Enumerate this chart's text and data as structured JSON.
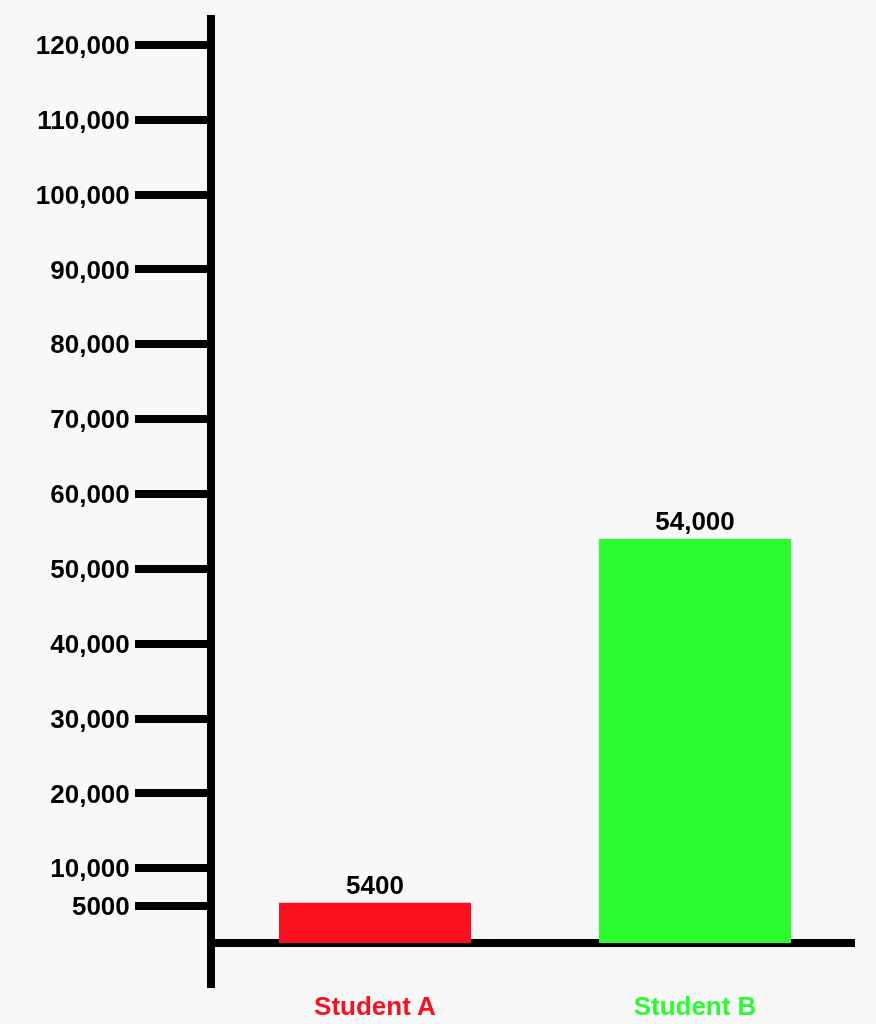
{
  "chart_data": {
    "type": "bar",
    "categories": [
      "Student A",
      "Student B"
    ],
    "values": [
      5400,
      54000
    ],
    "colors": [
      "#fc0f1f",
      "#2afc2f"
    ],
    "value_labels": [
      "5400",
      "54,000"
    ],
    "ylim": [
      -6000,
      124000
    ],
    "yticks": [
      {
        "value": 5000,
        "label": "5000"
      },
      {
        "value": 10000,
        "label": "10,000"
      },
      {
        "value": 20000,
        "label": "20,000"
      },
      {
        "value": 30000,
        "label": "30,000"
      },
      {
        "value": 40000,
        "label": "40,000"
      },
      {
        "value": 50000,
        "label": "50,000"
      },
      {
        "value": 60000,
        "label": "60,000"
      },
      {
        "value": 70000,
        "label": "70,000"
      },
      {
        "value": 80000,
        "label": "80,000"
      },
      {
        "value": 90000,
        "label": "90,000"
      },
      {
        "value": 100000,
        "label": "100,000"
      },
      {
        "value": 110000,
        "label": "110,000"
      },
      {
        "value": 120000,
        "label": "120,000"
      }
    ],
    "grid": false
  }
}
